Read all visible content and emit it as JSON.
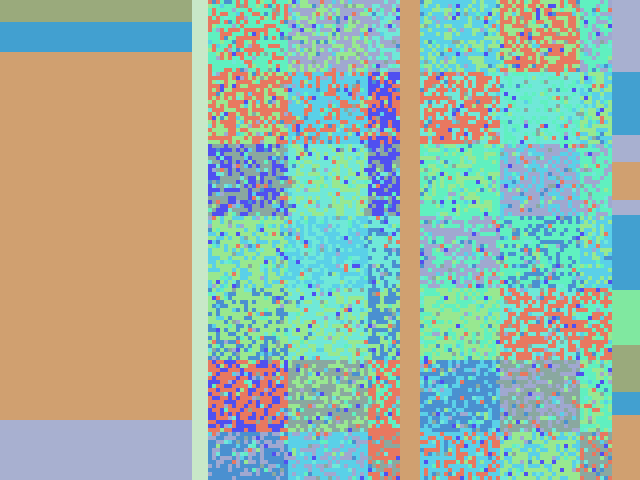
{
  "colors": {
    "olive": "#9aaa7c",
    "blue": "#42a0d0",
    "tan": "#d0a070",
    "lavender": "#a8b0d0",
    "pale_green": "#c8e8c8",
    "green": "#80e8a0"
  },
  "pattern_palette": [
    "#70e8d8",
    "#5ad0e8",
    "#e87860",
    "#a0a8d0",
    "#8aa8a0",
    "#60f0c0",
    "#4a90d0",
    "#98e890",
    "#5050f0"
  ]
}
